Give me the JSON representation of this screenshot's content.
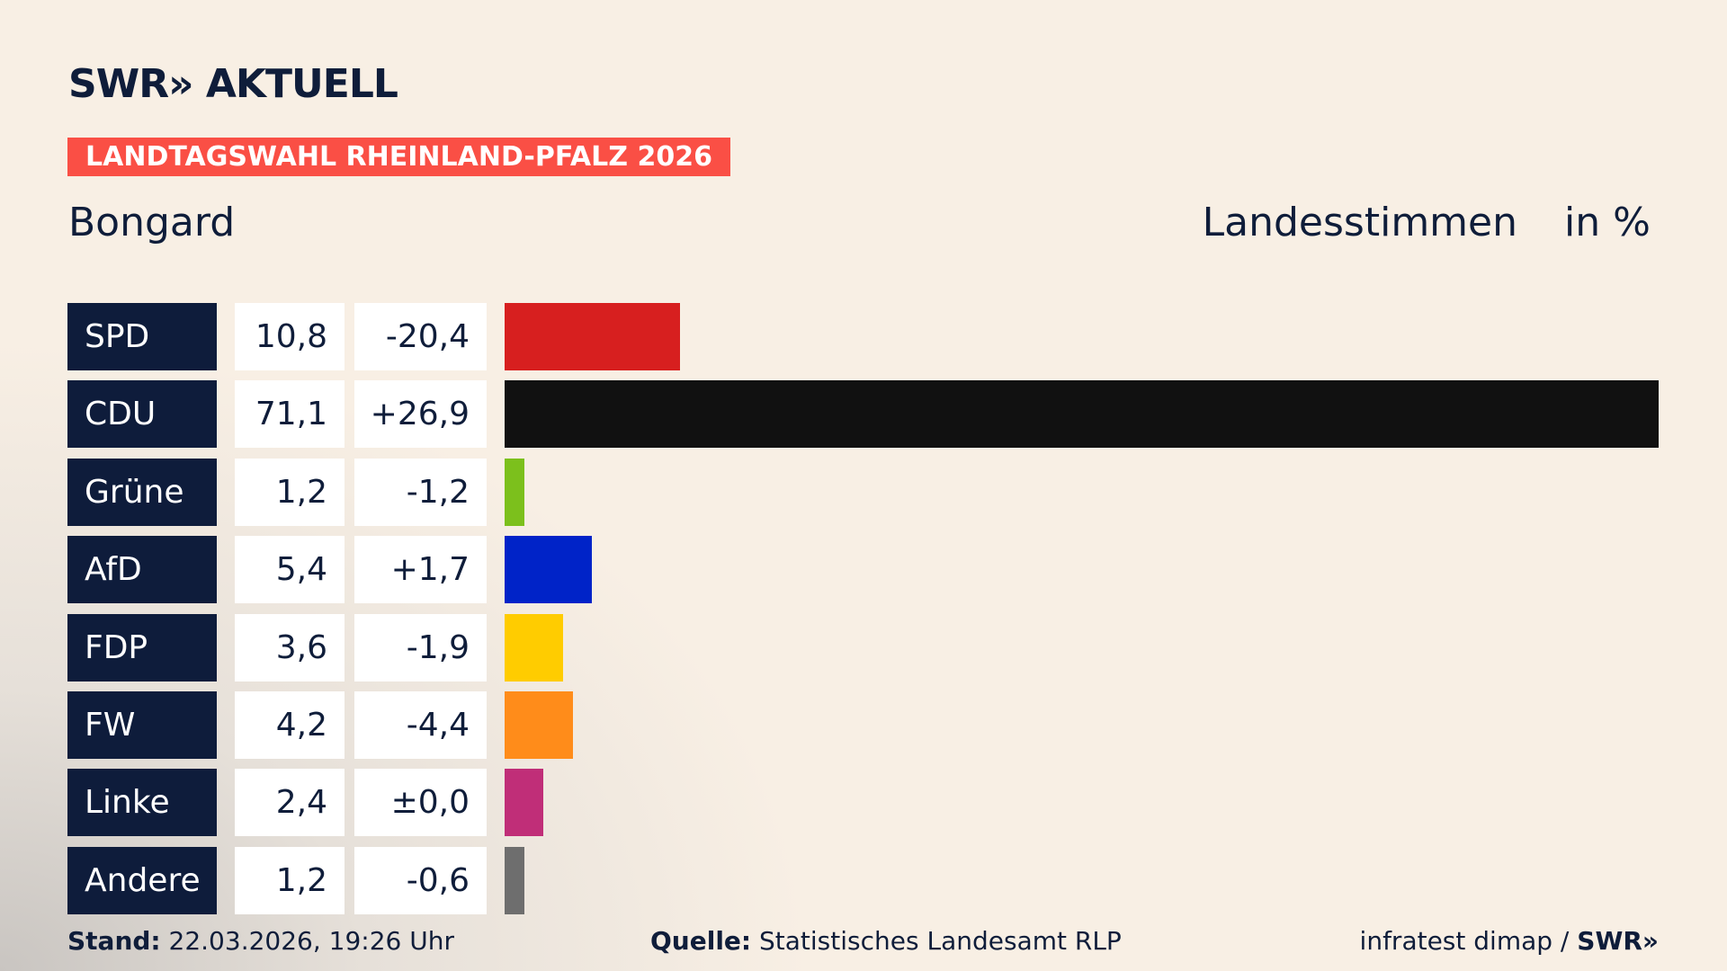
{
  "header": {
    "logo": "SWR",
    "logo_suffix": "AKTUELL",
    "banner": "LANDTAGSWAHL RHEINLAND-PFALZ 2026",
    "place": "Bongard",
    "measure": "Landesstimmen",
    "unit": "in %"
  },
  "chart_data": {
    "type": "bar",
    "orientation": "horizontal",
    "categories": [
      "SPD",
      "CDU",
      "Grüne",
      "AfD",
      "FDP",
      "FW",
      "Linke",
      "Andere"
    ],
    "values": [
      10.8,
      71.1,
      1.2,
      5.4,
      3.6,
      4.2,
      2.4,
      1.2
    ],
    "value_labels": [
      "10,8",
      "71,1",
      "1,2",
      "5,4",
      "3,6",
      "4,2",
      "2,4",
      "1,2"
    ],
    "changes": [
      -20.4,
      26.9,
      -1.2,
      1.7,
      -1.9,
      -4.4,
      0,
      -0.6
    ],
    "change_labels": [
      "-20,4",
      "+26,9",
      "-1,2",
      "+1,7",
      "-1,9",
      "-4,4",
      "±0,0",
      "-0,6"
    ],
    "colors": [
      "#d71f1f",
      "#111111",
      "#7cc01c",
      "#0023c8",
      "#ffcc00",
      "#ff8c1a",
      "#c02e78",
      "#6e6e6e"
    ]
  },
  "footer": {
    "stand_label": "Stand:",
    "stand": "22.03.2026, 19:26 Uhr",
    "source_label": "Quelle:",
    "source": "Statistisches Landesamt RLP",
    "credit": "infratest dimap /",
    "credit_logo": "SWR"
  }
}
